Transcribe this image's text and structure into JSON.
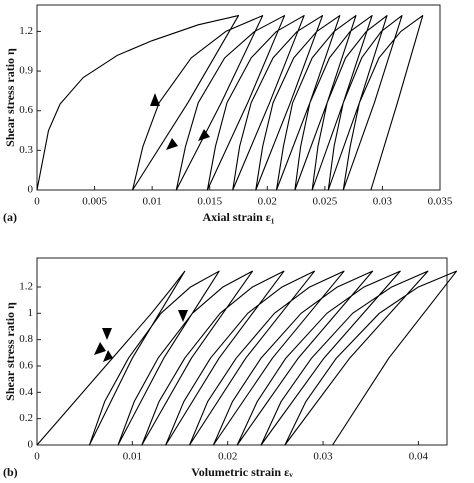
{
  "chart_data": [
    {
      "type": "line",
      "panel_label": "(a)",
      "xlabel": "Axial strain ε₁",
      "ylabel": "Shear stress ratio η",
      "xlim": [
        0,
        0.035
      ],
      "ylim": [
        0,
        1.4
      ],
      "xticks": [
        0,
        0.005,
        0.01,
        0.015,
        0.02,
        0.025,
        0.03,
        0.035
      ],
      "yticks": [
        0,
        0.3,
        0.6,
        0.9,
        1.2
      ],
      "series": [
        {
          "color": "#000000",
          "x": [
            0,
            0.001,
            0.002,
            0.004,
            0.007,
            0.01,
            0.014,
            0.0175,
            0.0131,
            0.0083,
            0.0092,
            0.0106,
            0.0134,
            0.0164,
            0.0196,
            0.016,
            0.0121,
            0.0129,
            0.014,
            0.0163,
            0.0189,
            0.0215,
            0.0183,
            0.0148,
            0.0155,
            0.0165,
            0.0186,
            0.0208,
            0.0232,
            0.0202,
            0.017,
            0.0176,
            0.0186,
            0.0205,
            0.0226,
            0.0248,
            0.022,
            0.019,
            0.0196,
            0.0205,
            0.0223,
            0.0243,
            0.0263,
            0.0237,
            0.0208,
            0.0214,
            0.0222,
            0.0239,
            0.0258,
            0.0277,
            0.0252,
            0.0224,
            0.0229,
            0.0237,
            0.0254,
            0.0272,
            0.0291,
            0.0266,
            0.0239,
            0.0244,
            0.0252,
            0.0268,
            0.0286,
            0.0304,
            0.028,
            0.0253,
            0.0258,
            0.0266,
            0.0282,
            0.0299,
            0.0317,
            0.0293,
            0.0266,
            0.0272,
            0.028,
            0.0297,
            0.0316,
            0.0335,
            0.0313,
            0.029
          ],
          "values": [
            0,
            0.45,
            0.65,
            0.85,
            1.02,
            1.13,
            1.25,
            1.32,
            0.66,
            0,
            0.33,
            0.66,
            1.0,
            1.2,
            1.32,
            0.66,
            0,
            0.33,
            0.66,
            1.0,
            1.2,
            1.32,
            0.66,
            0,
            0.33,
            0.66,
            1.0,
            1.2,
            1.32,
            0.66,
            0,
            0.33,
            0.66,
            1.0,
            1.2,
            1.32,
            0.66,
            0,
            0.33,
            0.66,
            1.0,
            1.2,
            1.32,
            0.66,
            0,
            0.33,
            0.66,
            1.0,
            1.2,
            1.32,
            0.66,
            0,
            0.33,
            0.66,
            1.0,
            1.2,
            1.32,
            0.66,
            0,
            0.33,
            0.66,
            1.0,
            1.2,
            1.32,
            0.66,
            0,
            0.33,
            0.66,
            1.0,
            1.2,
            1.32,
            0.66,
            0,
            0.33,
            0.66,
            1.0,
            1.2,
            1.32,
            0.66,
            0
          ]
        }
      ]
    },
    {
      "type": "line",
      "panel_label": "(b)",
      "xlabel": "Volumetric strain εᵥ",
      "ylabel": "Shear stress ratio η",
      "xlim": [
        0,
        0.043
      ],
      "ylim": [
        0,
        1.42
      ],
      "xticks": [
        0,
        0.01,
        0.02,
        0.03,
        0.04
      ],
      "yticks": [
        0,
        0.2,
        0.4,
        0.6,
        0.8,
        1,
        1.2
      ],
      "series": [
        {
          "color": "#000000",
          "x": [
            0,
            0.003,
            0.006,
            0.009,
            0.012,
            0.014,
            0.0155,
            0.01,
            0.0055,
            0.0071,
            0.0096,
            0.013,
            0.0161,
            0.0191,
            0.0133,
            0.0085,
            0.0102,
            0.0127,
            0.0163,
            0.0195,
            0.0226,
            0.0162,
            0.011,
            0.0128,
            0.0155,
            0.0192,
            0.0226,
            0.0259,
            0.0191,
            0.0135,
            0.0154,
            0.0182,
            0.0221,
            0.0257,
            0.0291,
            0.0219,
            0.016,
            0.0179,
            0.0209,
            0.0249,
            0.0286,
            0.0322,
            0.0247,
            0.0185,
            0.0205,
            0.0235,
            0.0277,
            0.0315,
            0.0352,
            0.0274,
            0.021,
            0.0231,
            0.0261,
            0.0304,
            0.0343,
            0.0381,
            0.0301,
            0.0235,
            0.0256,
            0.0288,
            0.0331,
            0.0372,
            0.041,
            0.0328,
            0.026,
            0.0282,
            0.0314,
            0.0359,
            0.04,
            0.044,
            0.0369,
            0.031
          ],
          "values": [
            0,
            0.25,
            0.5,
            0.75,
            1.0,
            1.18,
            1.32,
            0.66,
            0,
            0.33,
            0.66,
            1.0,
            1.2,
            1.32,
            0.66,
            0,
            0.33,
            0.66,
            1.0,
            1.2,
            1.32,
            0.66,
            0,
            0.33,
            0.66,
            1.0,
            1.2,
            1.32,
            0.66,
            0,
            0.33,
            0.66,
            1.0,
            1.2,
            1.32,
            0.66,
            0,
            0.33,
            0.66,
            1.0,
            1.2,
            1.32,
            0.66,
            0,
            0.33,
            0.66,
            1.0,
            1.2,
            1.32,
            0.66,
            0,
            0.33,
            0.66,
            1.0,
            1.2,
            1.32,
            0.66,
            0,
            0.33,
            0.66,
            1.0,
            1.2,
            1.32,
            0.66,
            0,
            0.33,
            0.66,
            1.0,
            1.2,
            1.32,
            0.66,
            0
          ]
        }
      ]
    }
  ]
}
